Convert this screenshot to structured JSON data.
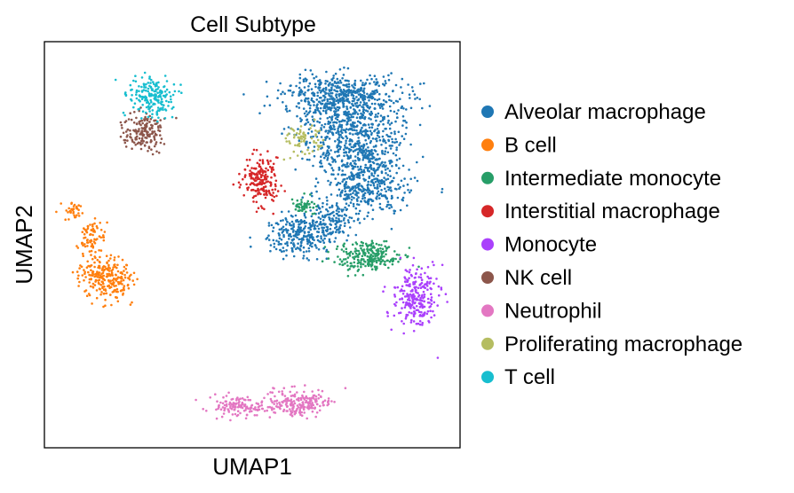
{
  "chart_data": {
    "type": "scatter",
    "title": "Cell Subtype",
    "xlabel": "UMAP1",
    "ylabel": "UMAP2",
    "xlim": [
      0,
      10
    ],
    "ylim": [
      0,
      10
    ],
    "grid": false,
    "ticks": false,
    "legend_placement": "right, outside",
    "series": [
      {
        "name": "Alveolar macrophage",
        "color": "#1f77b4"
      },
      {
        "name": "B cell",
        "color": "#ff7f0e"
      },
      {
        "name": "Intermediate monocyte",
        "color": "#279e68"
      },
      {
        "name": "Interstitial macrophage",
        "color": "#d62728"
      },
      {
        "name": "Monocyte",
        "color": "#aa40fc"
      },
      {
        "name": "NK cell",
        "color": "#8c564b"
      },
      {
        "name": "Neutrophil",
        "color": "#e377c2"
      },
      {
        "name": "Proliferating macrophage",
        "color": "#b5bd61"
      },
      {
        "name": "T cell",
        "color": "#17becf"
      }
    ]
  }
}
